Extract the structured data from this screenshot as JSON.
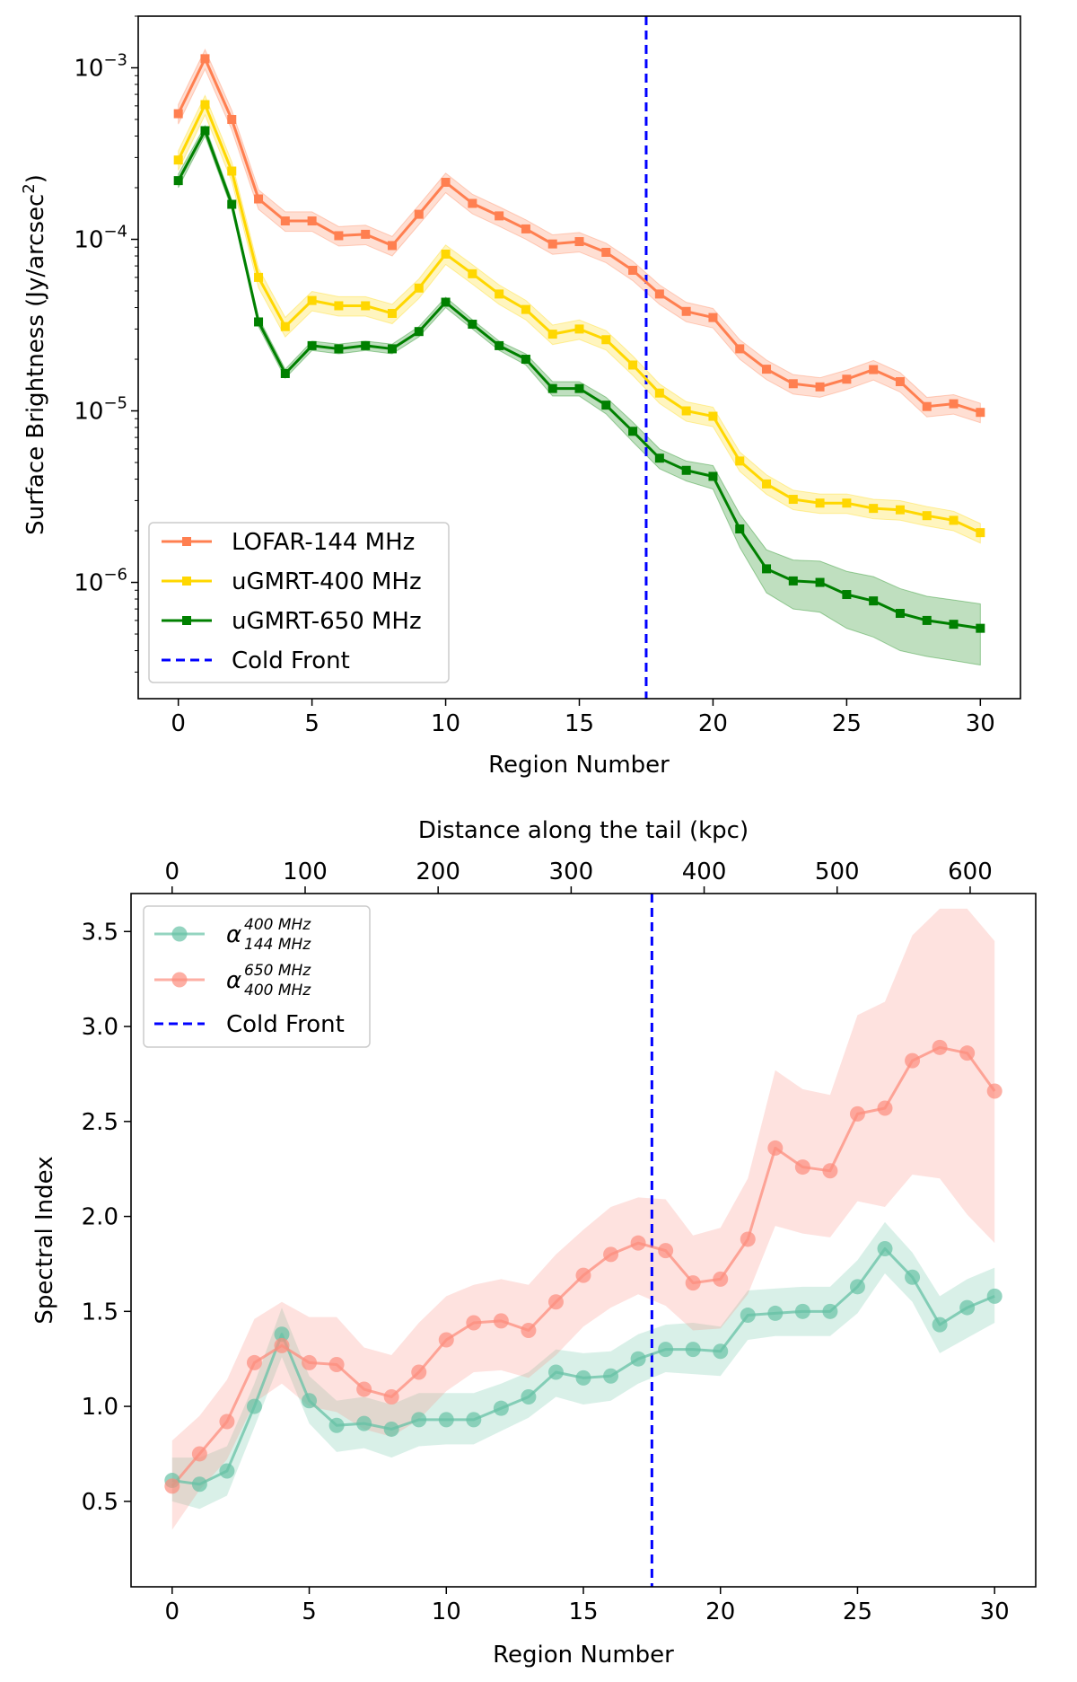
{
  "chart_data": [
    {
      "type": "line",
      "yscale": "log",
      "xlabel": "Region Number",
      "ylabel_main": "Surface Brightness (Jy/arcsec",
      "ylabel_sup": "2",
      "ylabel_end": ")",
      "xlim": [
        -1.5,
        31.5
      ],
      "ylim": [
        2.1e-07,
        0.002
      ],
      "xticks": [
        0,
        5,
        10,
        15,
        20,
        25,
        30
      ],
      "xtick_labels": [
        "0",
        "5",
        "10",
        "15",
        "20",
        "25",
        "30"
      ],
      "yticks": [
        1e-06,
        1e-05,
        0.0001,
        0.001
      ],
      "ytick_base": [
        "10",
        "10",
        "10",
        "10"
      ],
      "ytick_exp": [
        "−6",
        "−5",
        "−4",
        "−3"
      ],
      "legend_position": "lower-left",
      "cold_front": {
        "x": 17.5,
        "label": "Cold Front",
        "color": "#0000ff"
      },
      "x": [
        0,
        1,
        2,
        3,
        4,
        5,
        6,
        7,
        8,
        9,
        10,
        11,
        12,
        13,
        14,
        15,
        16,
        17,
        18,
        19,
        20,
        21,
        22,
        23,
        24,
        25,
        26,
        27,
        28,
        29,
        30
      ],
      "series": [
        {
          "name": "LOFAR-144 MHz",
          "color": "#ff7f50",
          "values": [
            0.00054,
            0.00113,
            0.0005,
            0.000172,
            0.000128,
            0.000128,
            0.000105,
            0.000107,
            9.2e-05,
            0.00014,
            0.000215,
            0.000162,
            0.000137,
            0.000115,
            9.4e-05,
            9.7e-05,
            8.4e-05,
            6.6e-05,
            4.8e-05,
            3.8e-05,
            3.5e-05,
            2.3e-05,
            1.75e-05,
            1.44e-05,
            1.38e-05,
            1.53e-05,
            1.74e-05,
            1.48e-05,
            1.06e-05,
            1.1e-05,
            9.8e-06
          ],
          "band_frac": 0.13
        },
        {
          "name": "uGMRT-400 MHz",
          "color": "#ffd700",
          "values": [
            0.00029,
            0.00061,
            0.00025,
            6e-05,
            3.1e-05,
            4.4e-05,
            4.1e-05,
            4.1e-05,
            3.7e-05,
            5.2e-05,
            8.2e-05,
            6.3e-05,
            4.8e-05,
            3.9e-05,
            2.8e-05,
            3e-05,
            2.6e-05,
            1.85e-05,
            1.27e-05,
            1e-05,
            9.3e-06,
            5.1e-06,
            3.75e-06,
            3.05e-06,
            2.9e-06,
            2.9e-06,
            2.7e-06,
            2.65e-06,
            2.45e-06,
            2.3e-06,
            1.95e-06
          ],
          "band_frac": 0.13
        },
        {
          "name": "uGMRT-650 MHz",
          "color": "#008000",
          "values": [
            0.00022,
            0.00043,
            0.00016,
            3.3e-05,
            1.65e-05,
            2.4e-05,
            2.3e-05,
            2.4e-05,
            2.3e-05,
            2.9e-05,
            4.3e-05,
            3.2e-05,
            2.4e-05,
            2e-05,
            1.35e-05,
            1.35e-05,
            1.08e-05,
            7.6e-06,
            5.3e-06,
            4.5e-06,
            4.15e-06,
            2.05e-06,
            1.2e-06,
            1.02e-06,
            1e-06,
            8.5e-07,
            7.8e-07,
            6.6e-07,
            6e-07,
            5.7e-07,
            5.4e-07
          ],
          "band_lower": [
            0.0002,
            0.0004,
            0.00015,
            3.1e-05,
            1.55e-05,
            2.25e-05,
            2.15e-05,
            2.25e-05,
            2.15e-05,
            2.7e-05,
            4e-05,
            3e-05,
            2.25e-05,
            1.85e-05,
            1.22e-05,
            1.22e-05,
            9.6e-06,
            6.6e-06,
            4.6e-06,
            3.9e-06,
            3.5e-06,
            1.6e-06,
            8.7e-07,
            7e-07,
            6.7e-07,
            5.4e-07,
            4.8e-07,
            4e-07,
            3.7e-07,
            3.5e-07,
            3.3e-07
          ],
          "band_upper": [
            0.00024,
            0.00046,
            0.00017,
            3.5e-05,
            1.75e-05,
            2.55e-05,
            2.45e-05,
            2.55e-05,
            2.45e-05,
            3.1e-05,
            4.6e-05,
            3.4e-05,
            2.55e-05,
            2.15e-05,
            1.48e-05,
            1.48e-05,
            1.2e-05,
            8.6e-06,
            6e-06,
            5.1e-06,
            4.8e-06,
            2.5e-06,
            1.55e-06,
            1.35e-06,
            1.33e-06,
            1.16e-06,
            1.08e-06,
            9.2e-07,
            8.3e-07,
            7.9e-07,
            7.5e-07
          ]
        }
      ]
    },
    {
      "type": "line",
      "xlabel": "Region Number",
      "ylabel": "Spectral Index",
      "top_xlabel": "Distance along the tail (kpc)",
      "xlim": [
        -1.5,
        31.5
      ],
      "ylim": [
        0.05,
        3.7
      ],
      "xticks": [
        0,
        5,
        10,
        15,
        20,
        25,
        30
      ],
      "xtick_labels": [
        "0",
        "5",
        "10",
        "15",
        "20",
        "25",
        "30"
      ],
      "yticks": [
        0.5,
        1.0,
        1.5,
        2.0,
        2.5,
        3.0,
        3.5
      ],
      "ytick_labels": [
        "0.5",
        "1.0",
        "1.5",
        "2.0",
        "2.5",
        "3.0",
        "3.5"
      ],
      "top_xlim_kpc": [
        -30.9,
        649.3
      ],
      "top_xticks": [
        0,
        100,
        200,
        300,
        400,
        500,
        600
      ],
      "top_xtick_labels": [
        "0",
        "100",
        "200",
        "300",
        "400",
        "500",
        "600"
      ],
      "legend_position": "upper-left",
      "cold_front": {
        "x": 17.5,
        "label": "Cold Front",
        "color": "#0000ff"
      },
      "x": [
        0,
        1,
        2,
        3,
        4,
        5,
        6,
        7,
        8,
        9,
        10,
        11,
        12,
        13,
        14,
        15,
        16,
        17,
        18,
        19,
        20,
        21,
        22,
        23,
        24,
        25,
        26,
        27,
        28,
        29,
        30
      ],
      "series": [
        {
          "name_base": "α",
          "name_sup": "400 MHz",
          "name_sub": "144 MHz",
          "color": "#66c2a5",
          "values": [
            0.61,
            0.59,
            0.66,
            1.0,
            1.38,
            1.03,
            0.9,
            0.91,
            0.88,
            0.93,
            0.93,
            0.93,
            0.99,
            1.05,
            1.18,
            1.15,
            1.16,
            1.25,
            1.3,
            1.3,
            1.29,
            1.48,
            1.49,
            1.5,
            1.5,
            1.63,
            1.83,
            1.68,
            1.43,
            1.52,
            1.58
          ],
          "band_lower": [
            0.5,
            0.46,
            0.53,
            0.89,
            1.26,
            0.91,
            0.76,
            0.78,
            0.73,
            0.79,
            0.8,
            0.8,
            0.87,
            0.94,
            1.05,
            1.01,
            1.03,
            1.12,
            1.18,
            1.17,
            1.16,
            1.35,
            1.37,
            1.37,
            1.37,
            1.49,
            1.7,
            1.55,
            1.28,
            1.36,
            1.44
          ],
          "band_upper": [
            0.73,
            0.73,
            0.79,
            1.12,
            1.52,
            1.16,
            1.03,
            1.05,
            1.01,
            1.07,
            1.07,
            1.07,
            1.12,
            1.18,
            1.3,
            1.28,
            1.29,
            1.38,
            1.43,
            1.44,
            1.42,
            1.61,
            1.62,
            1.63,
            1.63,
            1.77,
            1.97,
            1.81,
            1.58,
            1.67,
            1.73
          ]
        },
        {
          "name_base": "α",
          "name_sup": "650 MHz",
          "name_sub": "400 MHz",
          "color": "#fc8d7e",
          "values": [
            0.58,
            0.75,
            0.92,
            1.23,
            1.32,
            1.23,
            1.22,
            1.09,
            1.05,
            1.18,
            1.35,
            1.44,
            1.45,
            1.4,
            1.55,
            1.69,
            1.8,
            1.86,
            1.82,
            1.65,
            1.67,
            1.88,
            2.36,
            2.26,
            2.24,
            2.54,
            2.57,
            2.82,
            2.89,
            2.86,
            2.66
          ],
          "band_lower": [
            0.35,
            0.56,
            0.72,
            1.02,
            1.12,
            1.0,
            0.97,
            0.88,
            0.84,
            0.93,
            1.08,
            1.18,
            1.19,
            1.15,
            1.27,
            1.42,
            1.52,
            1.59,
            1.53,
            1.4,
            1.41,
            1.59,
            1.95,
            1.91,
            1.89,
            2.08,
            2.05,
            2.22,
            2.2,
            2.01,
            1.86
          ],
          "band_upper": [
            0.82,
            0.95,
            1.14,
            1.46,
            1.55,
            1.47,
            1.47,
            1.31,
            1.27,
            1.44,
            1.58,
            1.64,
            1.67,
            1.64,
            1.8,
            1.93,
            2.05,
            2.1,
            2.09,
            1.9,
            1.94,
            2.2,
            2.77,
            2.67,
            2.64,
            3.06,
            3.13,
            3.48,
            3.62,
            3.62,
            3.45
          ]
        }
      ]
    }
  ]
}
